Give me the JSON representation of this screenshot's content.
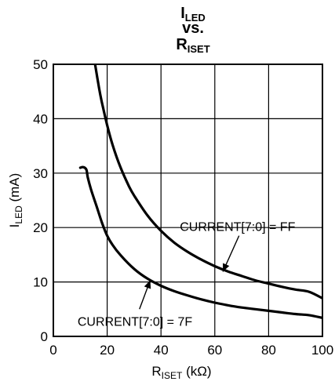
{
  "chart_data": {
    "type": "line",
    "title_lines": [
      {
        "main": "I",
        "sub": "LED"
      },
      {
        "main": "vs.",
        "sub": ""
      },
      {
        "main": "R",
        "sub": "ISET"
      }
    ],
    "xlabel": {
      "main": "R",
      "sub": "ISET",
      "rest": " (kΩ)"
    },
    "ylabel": {
      "main": "I",
      "sub": "LED",
      "rest": " (mA)"
    },
    "xlim": [
      0,
      100
    ],
    "ylim": [
      0,
      50
    ],
    "xticks": [
      "0",
      "20",
      "40",
      "60",
      "80",
      "100"
    ],
    "yticks": [
      "0",
      "10",
      "20",
      "30",
      "40",
      "50"
    ],
    "grid": true,
    "series": [
      {
        "name": "CURRENT[7:0] = FF",
        "x": [
          15.5,
          17,
          18,
          20,
          22,
          25,
          28,
          30,
          35,
          40,
          45,
          50,
          55,
          60,
          65,
          70,
          75,
          80,
          85,
          90,
          95,
          100
        ],
        "y": [
          50,
          45.6,
          43.1,
          38.8,
          35.2,
          31.0,
          27.7,
          25.9,
          22.2,
          19.4,
          17.2,
          15.5,
          14.1,
          12.9,
          11.9,
          11.1,
          10.3,
          9.7,
          9.1,
          8.6,
          8.2,
          7.0
        ]
      },
      {
        "name": "CURRENT[7:0] = 7F",
        "x": [
          10,
          11.2,
          12.3,
          12.8,
          14,
          16,
          18,
          20,
          22,
          25,
          30,
          35,
          40,
          45,
          50,
          55,
          60,
          65,
          70,
          75,
          80,
          85,
          90,
          95,
          100
        ],
        "y": [
          31,
          31.1,
          30.6,
          29.2,
          27.0,
          24.0,
          21.0,
          18.5,
          16.8,
          14.9,
          12.4,
          10.6,
          9.3,
          8.3,
          7.5,
          6.8,
          6.2,
          5.7,
          5.3,
          5.0,
          4.7,
          4.4,
          4.1,
          3.9,
          3.4
        ]
      }
    ],
    "annotations": [
      {
        "text": "CURRENT[7:0] = FF",
        "series": 0,
        "target_x": 63,
        "target_y": 11.9,
        "label_anchor_x": 69,
        "label_anchor_y": 18.5
      },
      {
        "text": "CURRENT[7:0] = 7F",
        "series": 1,
        "target_x": 36,
        "target_y": 10.3,
        "label_anchor_x": 32,
        "label_anchor_y": 5.0
      }
    ]
  }
}
